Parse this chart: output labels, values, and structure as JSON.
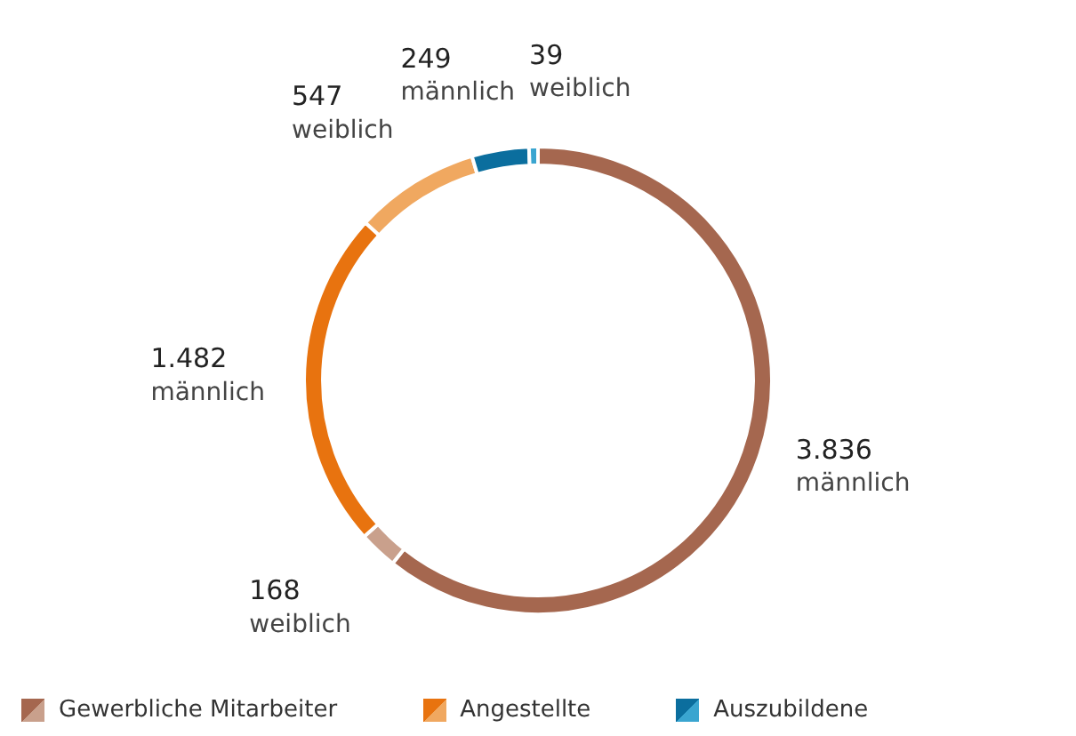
{
  "chart_data": {
    "type": "donut",
    "categories": [
      "männlich",
      "weiblich",
      "männlich",
      "weiblich",
      "männlich",
      "weiblich"
    ],
    "values": [
      3836,
      168,
      1482,
      547,
      249,
      39
    ],
    "colors": [
      "#a5674f",
      "#c9a08c",
      "#e8730f",
      "#f0a860",
      "#0b6e9e",
      "#3aa5d0"
    ],
    "value_labels": [
      "3.836",
      "168",
      "1.482",
      "547",
      "249",
      "39"
    ],
    "annotations": [
      "Gewerbliche Mitarbeiter",
      "Angestellte",
      "Auszubildene"
    ]
  }
}
